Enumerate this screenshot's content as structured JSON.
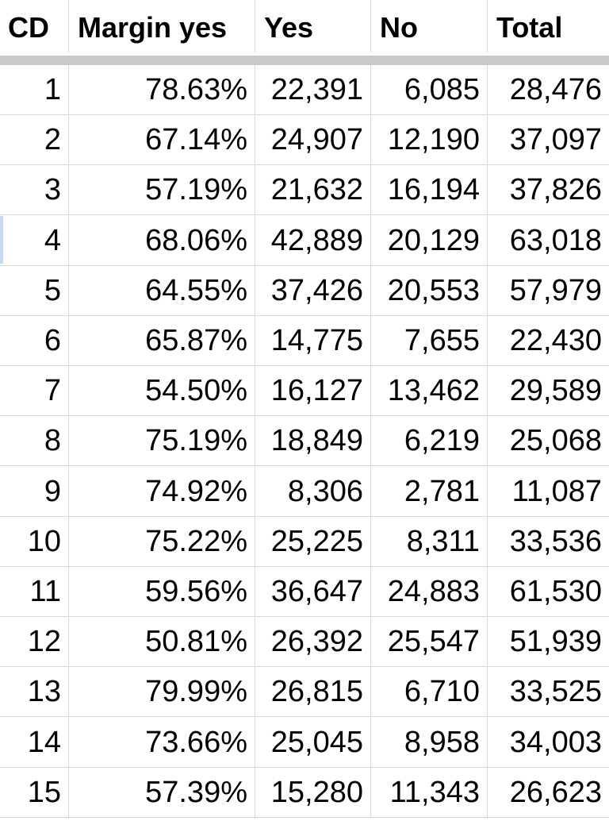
{
  "table": {
    "headers": [
      "CD",
      "Margin yes",
      "Yes",
      "No",
      "Total"
    ],
    "rows": [
      [
        "1",
        "78.63%",
        "22,391",
        "6,085",
        "28,476"
      ],
      [
        "2",
        "67.14%",
        "24,907",
        "12,190",
        "37,097"
      ],
      [
        "3",
        "57.19%",
        "21,632",
        "16,194",
        "37,826"
      ],
      [
        "4",
        "68.06%",
        "42,889",
        "20,129",
        "63,018"
      ],
      [
        "5",
        "64.55%",
        "37,426",
        "20,553",
        "57,979"
      ],
      [
        "6",
        "65.87%",
        "14,775",
        "7,655",
        "22,430"
      ],
      [
        "7",
        "54.50%",
        "16,127",
        "13,462",
        "29,589"
      ],
      [
        "8",
        "75.19%",
        "18,849",
        "6,219",
        "25,068"
      ],
      [
        "9",
        "74.92%",
        "8,306",
        "2,781",
        "11,087"
      ],
      [
        "10",
        "75.22%",
        "25,225",
        "8,311",
        "33,536"
      ],
      [
        "11",
        "59.56%",
        "36,647",
        "24,883",
        "61,530"
      ],
      [
        "12",
        "50.81%",
        "26,392",
        "25,547",
        "51,939"
      ],
      [
        "13",
        "79.99%",
        "26,815",
        "6,710",
        "33,525"
      ],
      [
        "14",
        "73.66%",
        "25,045",
        "8,958",
        "34,003"
      ],
      [
        "15",
        "57.39%",
        "15,280",
        "11,343",
        "26,623"
      ]
    ]
  },
  "colors": {
    "gridline": "#d8d8d8",
    "freeze_bar": "#c9c9c9",
    "selection_marker": "#c6d9f5",
    "text": "#000000"
  }
}
